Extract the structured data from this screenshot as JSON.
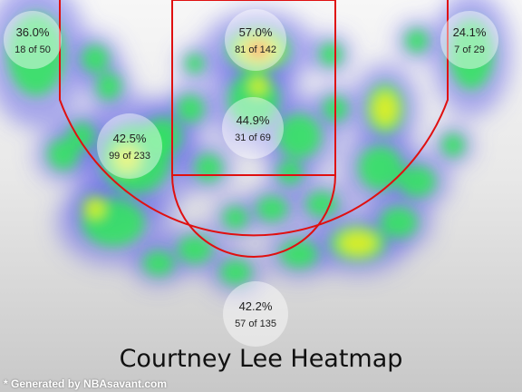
{
  "chart_data": {
    "type": "heatmap",
    "title": "Courtney Lee Heatmap",
    "zones": [
      {
        "zone": "left-corner-three",
        "pct": "36.0%",
        "made_attempts": "18 of 50",
        "made": 18,
        "attempts": 50
      },
      {
        "zone": "restricted-area",
        "pct": "57.0%",
        "made_attempts": "81 of 142",
        "made": 81,
        "attempts": 142
      },
      {
        "zone": "right-corner-three",
        "pct": "24.1%",
        "made_attempts": "7 of 29",
        "made": 7,
        "attempts": 29
      },
      {
        "zone": "left-mid-range",
        "pct": "42.5%",
        "made_attempts": "99 of 233",
        "made": 99,
        "attempts": 233
      },
      {
        "zone": "paint-non-ra",
        "pct": "44.9%",
        "made_attempts": "31 of 69",
        "made": 31,
        "attempts": 69
      },
      {
        "zone": "above-break-three",
        "pct": "42.2%",
        "made_attempts": "57 of 135",
        "made": 57,
        "attempts": 135
      }
    ],
    "court_line_color": "#e01010",
    "heat_colors": [
      "#6a6ae8",
      "#2ee85a",
      "#f0f020",
      "#ff3a1a"
    ]
  },
  "footer": {
    "credit": "* Generated by NBAsavant.com"
  }
}
